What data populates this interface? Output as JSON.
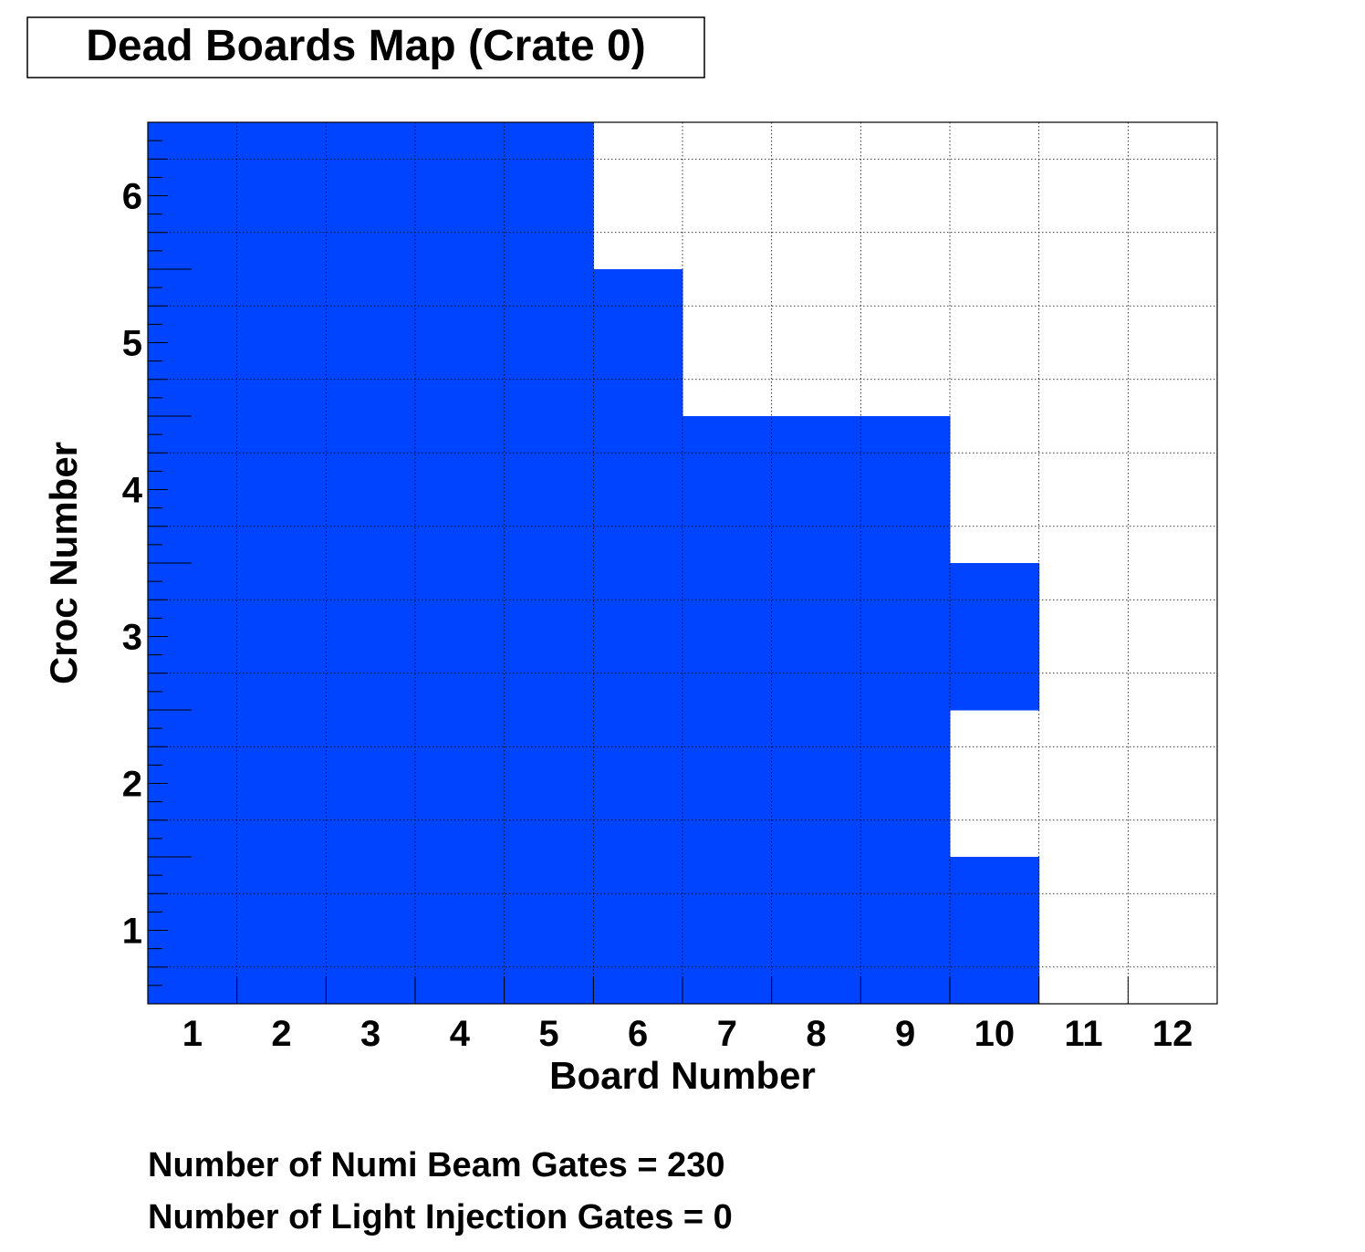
{
  "chart_data": {
    "type": "heatmap",
    "title": "Dead Boards Map (Crate 0)",
    "xlabel": "Board Number",
    "ylabel": "Croc Number",
    "x_categories": [
      1,
      2,
      3,
      4,
      5,
      6,
      7,
      8,
      9,
      10,
      11,
      12
    ],
    "y_categories": [
      1,
      2,
      3,
      4,
      5,
      6
    ],
    "xlim": [
      0.5,
      12.5
    ],
    "ylim": [
      0.5,
      6.5
    ],
    "grid": true,
    "fill_color": "#0044ff",
    "dead_boards_per_croc": [
      {
        "croc": 1,
        "boards": [
          1,
          2,
          3,
          4,
          5,
          6,
          7,
          8,
          9,
          10
        ]
      },
      {
        "croc": 2,
        "boards": [
          1,
          2,
          3,
          4,
          5,
          6,
          7,
          8,
          9
        ]
      },
      {
        "croc": 3,
        "boards": [
          1,
          2,
          3,
          4,
          5,
          6,
          7,
          8,
          9,
          10
        ]
      },
      {
        "croc": 4,
        "boards": [
          1,
          2,
          3,
          4,
          5,
          6,
          7,
          8,
          9
        ]
      },
      {
        "croc": 5,
        "boards": [
          1,
          2,
          3,
          4,
          5,
          6
        ]
      },
      {
        "croc": 6,
        "boards": [
          1,
          2,
          3,
          4,
          5
        ]
      }
    ]
  },
  "footer": {
    "beam_gates": "Number of Numi Beam Gates = 230",
    "li_gates": "Number of Light Injection Gates = 0"
  }
}
